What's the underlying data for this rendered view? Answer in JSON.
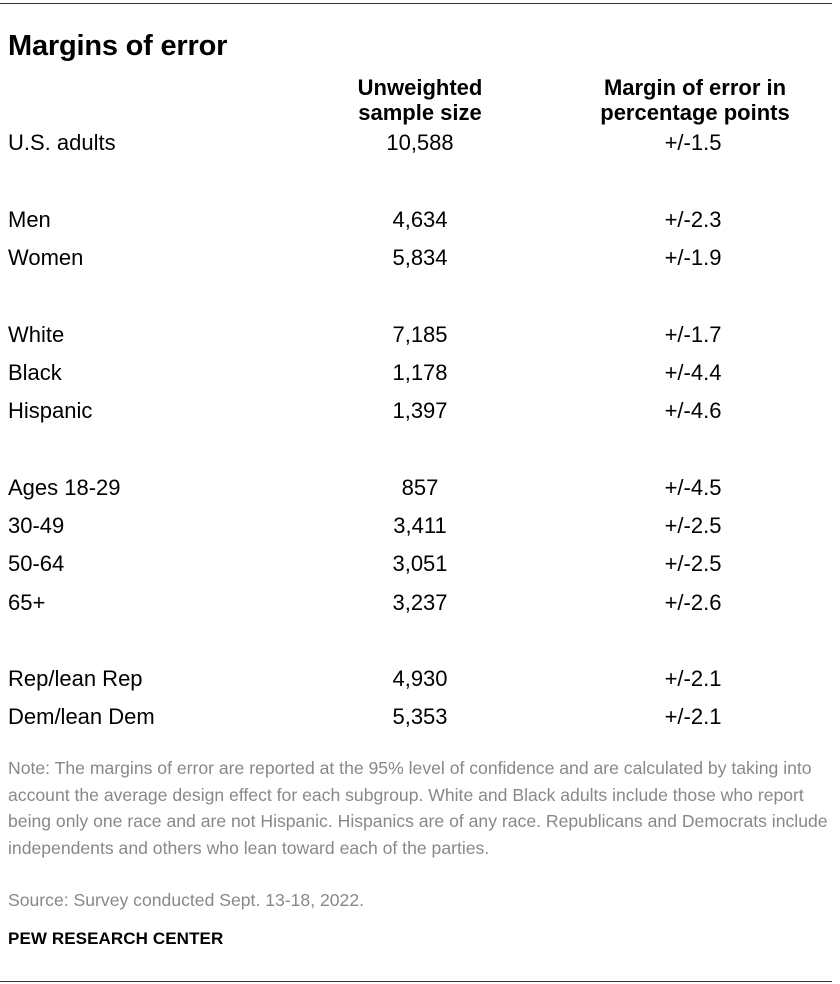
{
  "title": "Margins of error",
  "headers": {
    "sample_line1": "Unweighted",
    "sample_line2": "sample size",
    "moe_line1": "Margin of error in",
    "moe_line2": "percentage points"
  },
  "rows": [
    {
      "label": "U.S. adults",
      "sample": "10,588",
      "moe": "+/-1.5"
    },
    {
      "label": "Men",
      "sample": "4,634",
      "moe": "+/-2.3"
    },
    {
      "label": "Women",
      "sample": "5,834",
      "moe": "+/-1.9"
    },
    {
      "label": "White",
      "sample": "7,185",
      "moe": "+/-1.7"
    },
    {
      "label": "Black",
      "sample": "1,178",
      "moe": "+/-4.4"
    },
    {
      "label": "Hispanic",
      "sample": "1,397",
      "moe": "+/-4.6"
    },
    {
      "label": "Ages 18-29",
      "sample": "857",
      "moe": "+/-4.5"
    },
    {
      "label": "30-49",
      "sample": "3,411",
      "moe": "+/-2.5"
    },
    {
      "label": "50-64",
      "sample": "3,051",
      "moe": "+/-2.5"
    },
    {
      "label": "65+",
      "sample": "3,237",
      "moe": "+/-2.6"
    },
    {
      "label": "Rep/lean Rep",
      "sample": "4,930",
      "moe": "+/-2.1"
    },
    {
      "label": "Dem/lean Dem",
      "sample": "5,353",
      "moe": "+/-2.1"
    }
  ],
  "note": "Note: The margins of error are reported at the 95% level of confidence and are calculated by taking into account the average design effect for each subgroup. White and Black adults include those who report being only one race and are not Hispanic. Hispanics are of any race. Republicans and Democrats include independents and others who lean toward each of the parties.",
  "source": "Source: Survey conducted Sept. 13-18, 2022.",
  "brand": "PEW RESEARCH CENTER"
}
